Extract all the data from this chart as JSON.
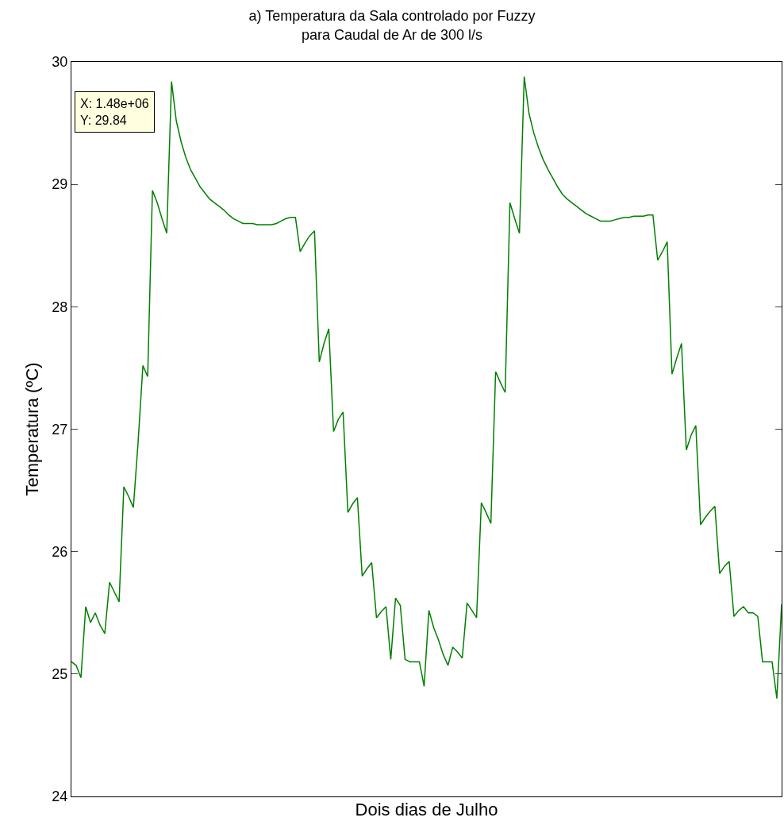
{
  "chart_data": {
    "type": "line",
    "title": "a) Temperatura da Sala controlado por Fuzzy\npara Caudal de Ar de 300 l/s",
    "xlabel": "Dois dias de Julho",
    "ylabel": "Temperatura (ºC)",
    "categories": [
      null,
      null,
      null,
      null,
      null,
      null,
      null,
      null,
      null,
      null,
      null,
      null,
      null,
      null,
      null,
      null,
      null,
      null,
      null,
      null,
      null,
      null,
      null,
      null,
      null,
      null,
      null,
      null,
      null,
      null,
      null,
      null,
      null,
      null,
      null,
      null,
      null,
      null,
      null,
      null,
      null,
      null,
      null,
      null,
      null,
      null,
      null,
      null,
      null,
      null,
      null,
      null,
      null,
      null,
      null,
      null,
      null,
      null,
      null,
      null,
      null,
      null,
      null,
      null,
      null,
      null,
      null,
      null,
      null,
      null,
      null,
      null,
      null,
      null,
      null,
      null,
      null,
      null,
      null,
      null,
      null,
      null,
      null,
      null,
      null,
      null,
      null,
      null,
      null,
      null,
      null,
      null,
      null,
      null,
      null,
      null,
      null,
      null,
      null,
      null,
      null,
      null,
      null,
      null,
      null,
      null,
      null,
      null,
      null,
      null,
      null,
      null,
      null,
      null,
      null,
      null,
      null,
      null,
      null,
      null,
      null,
      null,
      null,
      null,
      null,
      null,
      null,
      null,
      null,
      null,
      null,
      null,
      null,
      null,
      null,
      null,
      null,
      null,
      null,
      null,
      null,
      null,
      null,
      null,
      null,
      null,
      null,
      null,
      null,
      null
    ],
    "series": [
      {
        "color": "#007f00",
        "values": [
          25.1,
          25.07,
          24.97,
          25.55,
          25.42,
          25.5,
          25.4,
          25.33,
          25.75,
          25.67,
          25.59,
          26.53,
          26.45,
          26.36,
          26.9,
          27.52,
          27.43,
          28.95,
          28.85,
          28.72,
          28.6,
          29.84,
          29.52,
          29.35,
          29.22,
          29.12,
          29.05,
          28.98,
          28.93,
          28.88,
          28.85,
          28.82,
          28.79,
          28.75,
          28.72,
          28.7,
          28.68,
          28.68,
          28.68,
          28.67,
          28.67,
          28.67,
          28.67,
          28.68,
          28.7,
          28.72,
          28.73,
          28.73,
          28.45,
          28.52,
          28.58,
          28.62,
          27.55,
          27.7,
          27.82,
          26.98,
          27.08,
          27.14,
          26.32,
          26.39,
          26.44,
          25.8,
          25.86,
          25.91,
          25.46,
          25.51,
          25.55,
          25.12,
          25.62,
          25.56,
          25.12,
          25.1,
          25.1,
          25.1,
          24.9,
          25.52,
          25.38,
          25.28,
          25.16,
          25.07,
          25.22,
          25.18,
          25.13,
          25.58,
          25.52,
          25.46,
          26.4,
          26.32,
          26.23,
          27.47,
          27.38,
          27.3,
          28.85,
          28.72,
          28.6,
          29.88,
          29.58,
          29.42,
          29.3,
          29.2,
          29.12,
          29.05,
          28.98,
          28.92,
          28.88,
          28.85,
          28.82,
          28.79,
          28.76,
          28.74,
          28.72,
          28.7,
          28.7,
          28.7,
          28.71,
          28.72,
          28.73,
          28.73,
          28.74,
          28.74,
          28.74,
          28.75,
          28.75,
          28.38,
          28.45,
          28.53,
          27.45,
          27.58,
          27.7,
          26.83,
          26.95,
          27.03,
          26.22,
          26.28,
          26.33,
          26.37,
          25.82,
          25.88,
          25.92,
          25.47,
          25.52,
          25.55,
          25.5,
          25.5,
          25.47,
          25.1,
          25.1,
          25.1,
          24.8,
          25.57
        ]
      }
    ],
    "ylim": [
      24,
      30
    ],
    "yticks": [
      24,
      25,
      26,
      27,
      28,
      29,
      30
    ],
    "grid": false,
    "marker": "none",
    "line_style": "solid",
    "tick_labels": "y",
    "annotations": [
      "X: 1.48e+06\nY: 29.84"
    ]
  }
}
